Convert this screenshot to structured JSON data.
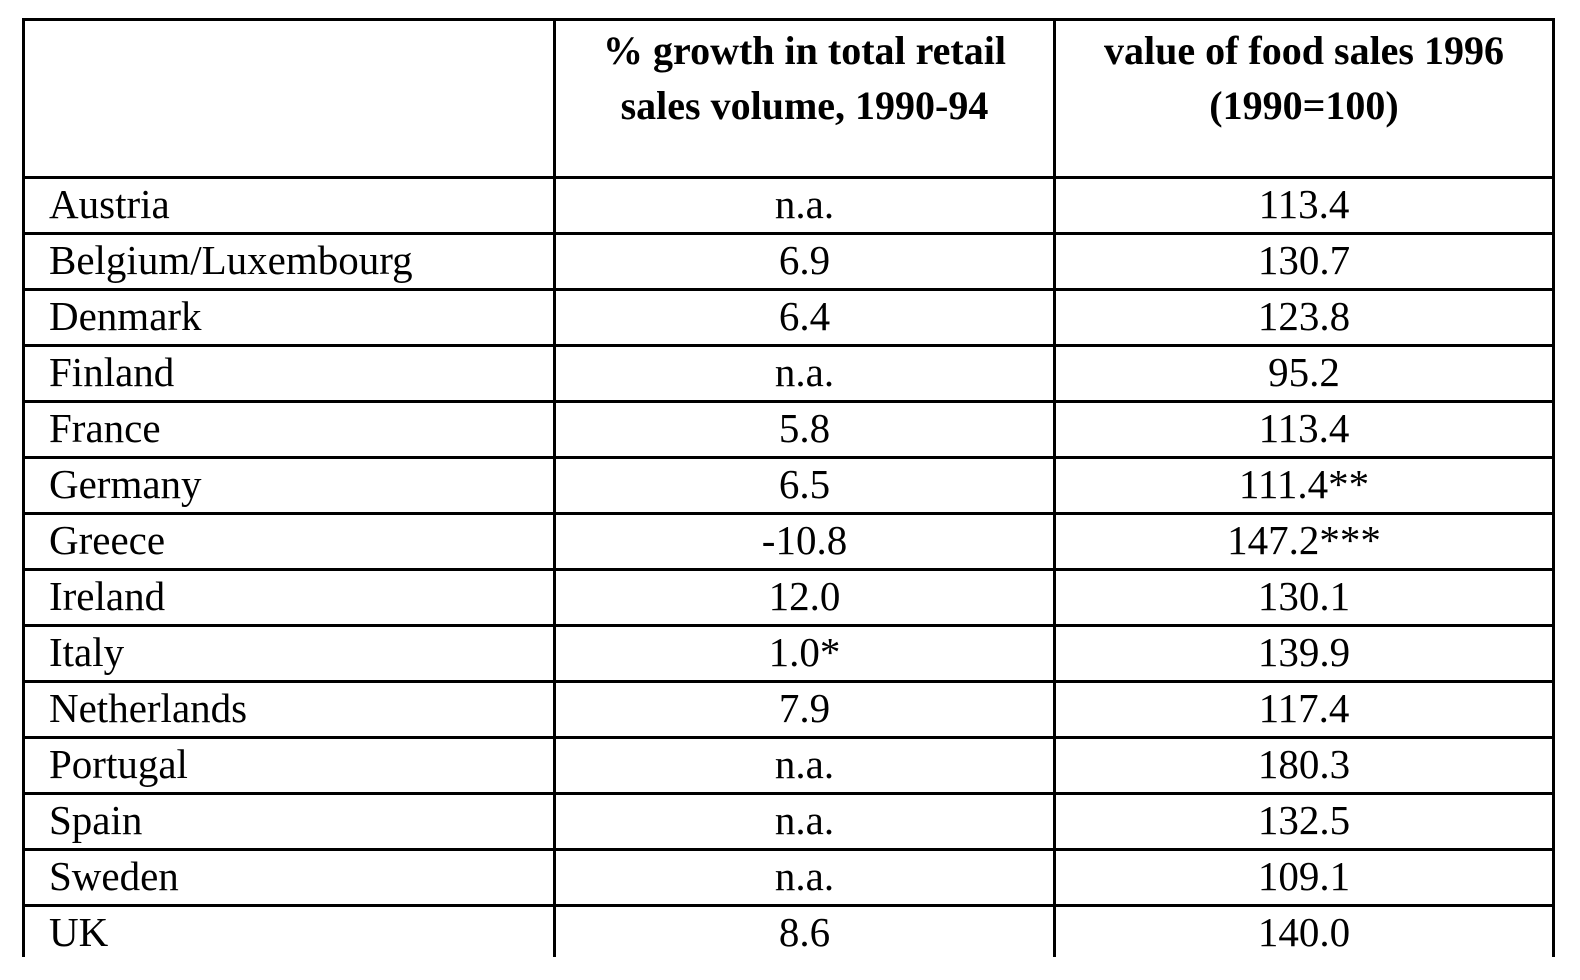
{
  "table": {
    "headers": [
      "",
      "% growth in total retail sales volume, 1990-94",
      "value of food sales 1996 (1990=100)"
    ],
    "rows": [
      {
        "country": "Austria",
        "growth": "n.a.",
        "food_value": "113.4"
      },
      {
        "country": "Belgium/Luxembourg",
        "growth": "6.9",
        "food_value": "130.7"
      },
      {
        "country": "Denmark",
        "growth": "6.4",
        "food_value": "123.8"
      },
      {
        "country": "Finland",
        "growth": "n.a.",
        "food_value": "95.2"
      },
      {
        "country": "France",
        "growth": "5.8",
        "food_value": "113.4"
      },
      {
        "country": "Germany",
        "growth": "6.5",
        "food_value": "111.4**"
      },
      {
        "country": "Greece",
        "growth": "-10.8",
        "food_value": "147.2***"
      },
      {
        "country": "Ireland",
        "growth": "12.0",
        "food_value": "130.1"
      },
      {
        "country": "Italy",
        "growth": "1.0*",
        "food_value": "139.9"
      },
      {
        "country": "Netherlands",
        "growth": "7.9",
        "food_value": "117.4"
      },
      {
        "country": "Portugal",
        "growth": "n.a.",
        "food_value": "180.3"
      },
      {
        "country": "Spain",
        "growth": "n.a.",
        "food_value": "132.5"
      },
      {
        "country": "Sweden",
        "growth": "n.a.",
        "food_value": "109.1"
      },
      {
        "country": "UK",
        "growth": "8.6",
        "food_value": "140.0"
      }
    ]
  }
}
